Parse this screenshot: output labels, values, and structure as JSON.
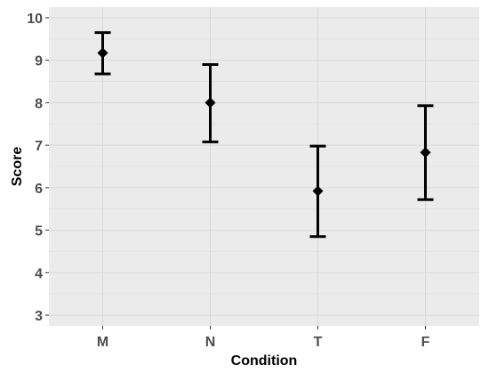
{
  "chart_data": {
    "type": "scatter",
    "style": "point with error bars",
    "xlabel": "Condition",
    "ylabel": "Score",
    "categories": [
      "M",
      "N",
      "T",
      "F"
    ],
    "values": [
      9.17,
      8.0,
      5.92,
      6.83
    ],
    "error_low": [
      8.68,
      7.08,
      4.85,
      5.72
    ],
    "error_high": [
      9.65,
      8.9,
      6.98,
      7.93
    ],
    "ylim": [
      2.75,
      10.25
    ],
    "yticks": [
      3,
      4,
      5,
      6,
      7,
      8,
      9,
      10
    ],
    "grid": true,
    "colors": {
      "panel_background": "#ebebeb",
      "grid_major": "#d9d9d9",
      "grid_minor": "#e3e3e3",
      "marker": "#000000"
    }
  }
}
